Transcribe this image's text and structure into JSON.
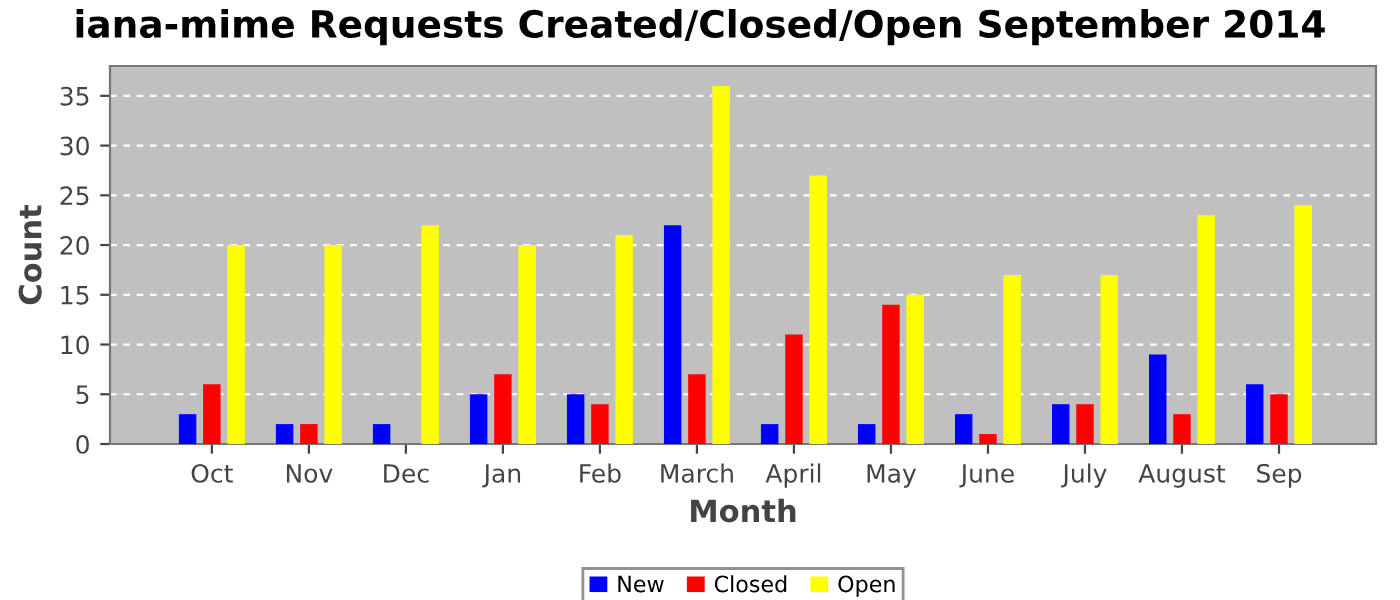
{
  "chart_data": {
    "type": "bar",
    "title": "iana-mime Requests Created/Closed/Open September 2014",
    "xlabel": "Month",
    "ylabel": "Count",
    "categories": [
      "Oct",
      "Nov",
      "Dec",
      "Jan",
      "Feb",
      "March",
      "April",
      "May",
      "June",
      "July",
      "August",
      "Sep"
    ],
    "series": [
      {
        "name": "New",
        "color": "#0000ff",
        "values": [
          3,
          2,
          2,
          5,
          5,
          22,
          2,
          2,
          3,
          4,
          9,
          6
        ]
      },
      {
        "name": "Closed",
        "color": "#ff0000",
        "values": [
          6,
          2,
          0,
          7,
          4,
          7,
          11,
          14,
          1,
          4,
          3,
          5
        ]
      },
      {
        "name": "Open",
        "color": "#ffff00",
        "values": [
          20,
          20,
          22,
          20,
          21,
          36,
          27,
          15,
          17,
          17,
          23,
          24
        ]
      }
    ],
    "ylim": [
      0,
      38
    ],
    "yticks": [
      0,
      5,
      10,
      15,
      20,
      25,
      30,
      35
    ],
    "grid": "y",
    "legend": "bottom"
  }
}
